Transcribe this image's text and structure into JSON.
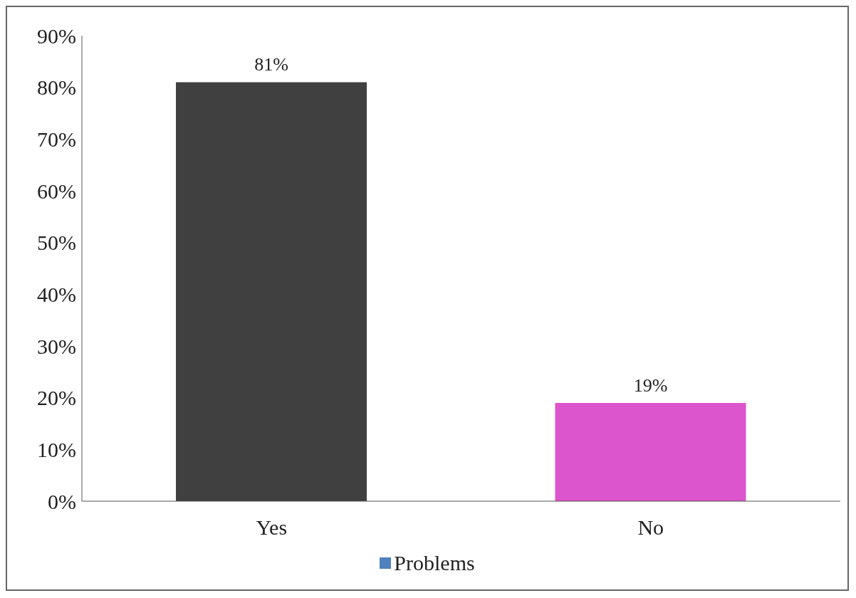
{
  "chart_data": {
    "type": "bar",
    "categories": [
      "Yes",
      "No"
    ],
    "series": [
      {
        "name": "Problems",
        "color": "#4f81bd",
        "colors": [
          "#404040",
          "#dd55cc"
        ],
        "values": [
          81,
          19
        ],
        "value_labels": [
          "81%",
          "19%"
        ]
      }
    ],
    "ylim": [
      0,
      90
    ],
    "yticks": [
      {
        "value": 0,
        "label": "0%"
      },
      {
        "value": 10,
        "label": "10%"
      },
      {
        "value": 20,
        "label": "20%"
      },
      {
        "value": 30,
        "label": "30%"
      },
      {
        "value": 40,
        "label": "40%"
      },
      {
        "value": 50,
        "label": "50%"
      },
      {
        "value": 60,
        "label": "60%"
      },
      {
        "value": 70,
        "label": "70%"
      },
      {
        "value": 80,
        "label": "80%"
      },
      {
        "value": 90,
        "label": "90%"
      }
    ],
    "grid": false,
    "legend": "bottom"
  }
}
